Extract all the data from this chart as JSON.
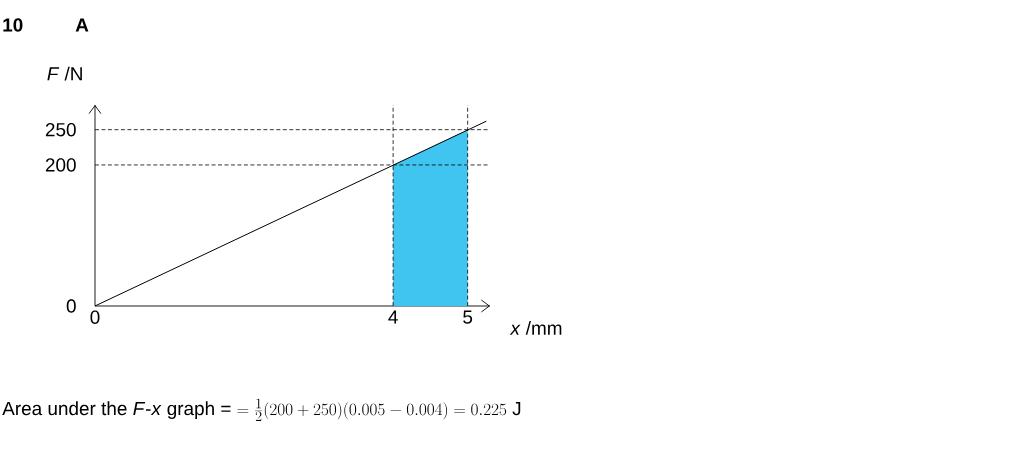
{
  "chart_data": {
    "type": "line",
    "xlabel": "*x* /mm",
    "ylabel": "*F* /N",
    "xlim": [
      0,
      5.3
    ],
    "ylim": [
      0,
      285
    ],
    "xticks": [
      0,
      4,
      5
    ],
    "yticks": [
      0,
      200,
      250
    ],
    "series": [
      {
        "type": "area",
        "color": "#40c4f0",
        "x": [
          4,
          5
        ],
        "values": [
          200,
          250
        ]
      },
      {
        "color": "#000000",
        "x": [
          0,
          5.25
        ],
        "values": [
          0,
          262
        ]
      }
    ],
    "ref_lines": [
      {
        "axis": "y",
        "value": 200,
        "color": "#000000",
        "line_style": "dashed"
      },
      {
        "axis": "y",
        "value": 250,
        "color": "#000000",
        "line_style": "dashed"
      },
      {
        "axis": "x",
        "value": 4,
        "color": "#000000",
        "line_style": "dashed"
      },
      {
        "axis": "x",
        "value": 5,
        "color": "#000000",
        "line_style": "dashed"
      }
    ],
    "annotations": [
      "10",
      "A",
      "Area under the *F*-*x* graph = ",
      "=\\frac{1}{2}(200+250)(0.005-0.004)=0.225\\ \\mathrm{J}"
    ]
  }
}
